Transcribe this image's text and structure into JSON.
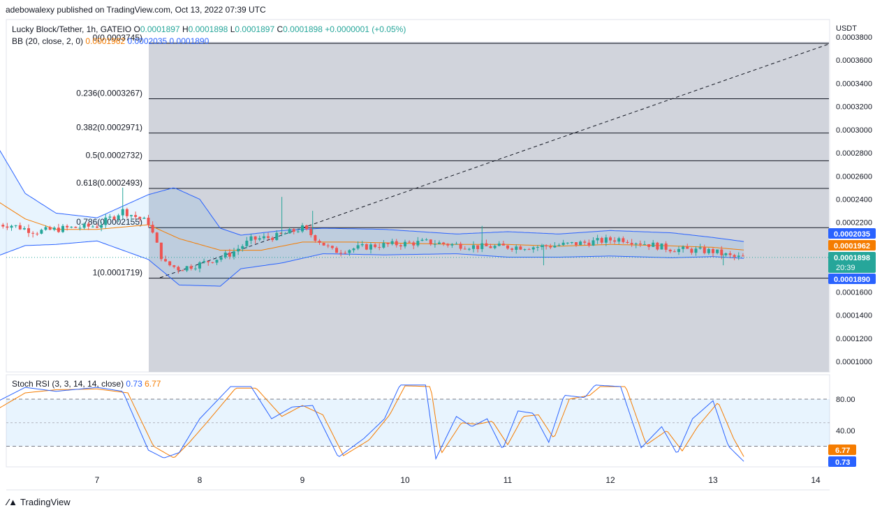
{
  "header": {
    "published_by": "adebowalexy published on TradingView.com, Oct 13, 2022 07:39 UTC"
  },
  "legend": {
    "symbol": "Lucky Block/Tether, 1h, GATEIO",
    "o_label": "O",
    "o": "0.0001897",
    "h_label": "H",
    "h": "0.0001898",
    "l_label": "L",
    "l": "0.0001897",
    "c_label": "C",
    "c": "0.0001898",
    "change": "+0.0000001 (+0.05%)",
    "bb_label": "BB (20, close, 2, 0)",
    "bb_basis": "0.0001962",
    "bb_upper": "0.0002035",
    "bb_lower": "0.0001890"
  },
  "price_axis": {
    "currency": "USDT",
    "ticks": [
      "0.0003800",
      "0.0003600",
      "0.0003400",
      "0.0003200",
      "0.0003000",
      "0.0002800",
      "0.0002600",
      "0.0002400",
      "0.0002200",
      "0.0001600",
      "0.0001400",
      "0.0001200",
      "0.0001000"
    ],
    "badges": [
      {
        "value": "0.0002035",
        "color": "#2962ff"
      },
      {
        "value": "0.0001962",
        "color": "#f57c00"
      },
      {
        "value": "0.0001898",
        "color": "#26a69a",
        "sub": "20:39"
      },
      {
        "value": "0.0001890",
        "color": "#2962ff"
      }
    ]
  },
  "time_axis": {
    "ticks": [
      "7",
      "8",
      "9",
      "10",
      "11",
      "12",
      "13",
      "14"
    ]
  },
  "fib_levels": [
    {
      "label": "0(0.0003745)",
      "price": 0.0003745
    },
    {
      "label": "0.236(0.0003267)",
      "price": 0.0003267
    },
    {
      "label": "0.382(0.0002971)",
      "price": 0.0002971
    },
    {
      "label": "0.5(0.0002732)",
      "price": 0.0002732
    },
    {
      "label": "0.618(0.0002493)",
      "price": 0.0002493
    },
    {
      "label": "0.786(0.0002155)",
      "price": 0.0002155
    },
    {
      "label": "1(0.0001719)",
      "price": 0.0001719
    }
  ],
  "stoch_rsi": {
    "label": "Stoch RSI (3, 3, 14, 14, close)",
    "k_value": "0.73",
    "d_value": "6.77",
    "axis_ticks": [
      "80.00",
      "40.00"
    ],
    "k_color": "#2962ff",
    "d_color": "#f57c00"
  },
  "colors": {
    "up": "#26a69a",
    "down": "#ef5350",
    "bb_band": "#2962ff",
    "bb_basis": "#f57c00",
    "fib_zone": "#d1d4dc"
  },
  "brand": "TradingView",
  "chart_data": {
    "type": "candlestick",
    "title": "Lucky Block/Tether, 1h, GATEIO",
    "ylabel": "USDT",
    "x_ticks": [
      "7",
      "8",
      "9",
      "10",
      "11",
      "12",
      "13",
      "14"
    ],
    "ylim": [
      9e-05,
      0.000385
    ],
    "close_anchors": [
      {
        "x": 6.15,
        "close": 0.000218
      },
      {
        "x": 6.4,
        "close": 0.000212
      },
      {
        "x": 6.7,
        "close": 0.000215
      },
      {
        "x": 7.0,
        "close": 0.000217
      },
      {
        "x": 7.25,
        "close": 0.00023
      },
      {
        "x": 7.5,
        "close": 0.00022
      },
      {
        "x": 7.65,
        "close": 0.000185
      },
      {
        "x": 7.8,
        "close": 0.00018
      },
      {
        "x": 8.0,
        "close": 0.000184
      },
      {
        "x": 8.3,
        "close": 0.000193
      },
      {
        "x": 8.5,
        "close": 0.000205
      },
      {
        "x": 8.75,
        "close": 0.000208
      },
      {
        "x": 9.0,
        "close": 0.000215
      },
      {
        "x": 9.3,
        "close": 0.000195
      },
      {
        "x": 9.7,
        "close": 0.0002
      },
      {
        "x": 10.2,
        "close": 0.000203
      },
      {
        "x": 10.7,
        "close": 0.000199
      },
      {
        "x": 11.3,
        "close": 0.000199
      },
      {
        "x": 11.7,
        "close": 0.000202
      },
      {
        "x": 12.1,
        "close": 0.000206
      },
      {
        "x": 12.6,
        "close": 0.000197
      },
      {
        "x": 13.0,
        "close": 0.000195
      },
      {
        "x": 13.2,
        "close": 0.0001898
      }
    ],
    "bb_upper_anchors": [
      {
        "x": 6.0,
        "v": 0.00029
      },
      {
        "x": 6.3,
        "v": 0.000245
      },
      {
        "x": 6.6,
        "v": 0.000228
      },
      {
        "x": 7.0,
        "v": 0.000224
      },
      {
        "x": 7.5,
        "v": 0.000244
      },
      {
        "x": 7.75,
        "v": 0.00025
      },
      {
        "x": 8.0,
        "v": 0.00024
      },
      {
        "x": 8.2,
        "v": 0.000215
      },
      {
        "x": 8.4,
        "v": 0.000209
      },
      {
        "x": 8.8,
        "v": 0.000213
      },
      {
        "x": 9.2,
        "v": 0.000215
      },
      {
        "x": 9.8,
        "v": 0.000214
      },
      {
        "x": 10.5,
        "v": 0.00021
      },
      {
        "x": 11.0,
        "v": 0.000212
      },
      {
        "x": 11.5,
        "v": 0.00021
      },
      {
        "x": 12.0,
        "v": 0.000213
      },
      {
        "x": 12.6,
        "v": 0.000211
      },
      {
        "x": 13.0,
        "v": 0.000207
      },
      {
        "x": 13.3,
        "v": 0.0002035
      }
    ],
    "bb_basis_anchors": [
      {
        "x": 6.0,
        "v": 0.00024
      },
      {
        "x": 6.3,
        "v": 0.000223
      },
      {
        "x": 6.6,
        "v": 0.000214
      },
      {
        "x": 7.0,
        "v": 0.000214
      },
      {
        "x": 7.5,
        "v": 0.000218
      },
      {
        "x": 7.8,
        "v": 0.000206
      },
      {
        "x": 8.2,
        "v": 0.000196
      },
      {
        "x": 8.6,
        "v": 0.000196
      },
      {
        "x": 9.0,
        "v": 0.000203
      },
      {
        "x": 9.5,
        "v": 0.000203
      },
      {
        "x": 10.0,
        "v": 0.000202
      },
      {
        "x": 10.5,
        "v": 0.000201
      },
      {
        "x": 11.0,
        "v": 0.000201
      },
      {
        "x": 11.5,
        "v": 0.0001995
      },
      {
        "x": 12.0,
        "v": 0.000201
      },
      {
        "x": 12.5,
        "v": 0.0002
      },
      {
        "x": 13.0,
        "v": 0.0001985
      },
      {
        "x": 13.3,
        "v": 0.0001962
      }
    ],
    "bb_lower_anchors": [
      {
        "x": 6.0,
        "v": 0.00019
      },
      {
        "x": 6.3,
        "v": 0.0002
      },
      {
        "x": 6.6,
        "v": 0.000201
      },
      {
        "x": 7.0,
        "v": 0.000204
      },
      {
        "x": 7.5,
        "v": 0.000188
      },
      {
        "x": 7.8,
        "v": 0.000166
      },
      {
        "x": 8.2,
        "v": 0.000165
      },
      {
        "x": 8.4,
        "v": 0.00018
      },
      {
        "x": 8.8,
        "v": 0.000185
      },
      {
        "x": 9.2,
        "v": 0.000193
      },
      {
        "x": 9.8,
        "v": 0.000192
      },
      {
        "x": 10.5,
        "v": 0.000193
      },
      {
        "x": 11.0,
        "v": 0.00019
      },
      {
        "x": 11.5,
        "v": 0.00019
      },
      {
        "x": 12.0,
        "v": 0.000191
      },
      {
        "x": 12.6,
        "v": 0.0001895
      },
      {
        "x": 13.0,
        "v": 0.0001905
      },
      {
        "x": 13.3,
        "v": 0.000189
      }
    ],
    "stoch_k_anchors": [
      {
        "x": 6.0,
        "v": 75
      },
      {
        "x": 6.3,
        "v": 95
      },
      {
        "x": 6.6,
        "v": 90
      },
      {
        "x": 7.0,
        "v": 95
      },
      {
        "x": 7.25,
        "v": 90
      },
      {
        "x": 7.5,
        "v": 15
      },
      {
        "x": 7.65,
        "v": 5
      },
      {
        "x": 7.8,
        "v": 12
      },
      {
        "x": 8.0,
        "v": 55
      },
      {
        "x": 8.3,
        "v": 96
      },
      {
        "x": 8.5,
        "v": 96
      },
      {
        "x": 8.7,
        "v": 55
      },
      {
        "x": 8.9,
        "v": 70
      },
      {
        "x": 9.1,
        "v": 72
      },
      {
        "x": 9.35,
        "v": 6
      },
      {
        "x": 9.6,
        "v": 30
      },
      {
        "x": 9.8,
        "v": 55
      },
      {
        "x": 9.95,
        "v": 98
      },
      {
        "x": 10.2,
        "v": 98
      },
      {
        "x": 10.3,
        "v": 4
      },
      {
        "x": 10.5,
        "v": 58
      },
      {
        "x": 10.65,
        "v": 45
      },
      {
        "x": 10.8,
        "v": 55
      },
      {
        "x": 10.95,
        "v": 16
      },
      {
        "x": 11.1,
        "v": 65
      },
      {
        "x": 11.25,
        "v": 62
      },
      {
        "x": 11.4,
        "v": 25
      },
      {
        "x": 11.55,
        "v": 85
      },
      {
        "x": 11.75,
        "v": 82
      },
      {
        "x": 11.85,
        "v": 98
      },
      {
        "x": 12.1,
        "v": 96
      },
      {
        "x": 12.3,
        "v": 18
      },
      {
        "x": 12.5,
        "v": 45
      },
      {
        "x": 12.65,
        "v": 10
      },
      {
        "x": 12.8,
        "v": 55
      },
      {
        "x": 13.0,
        "v": 78
      },
      {
        "x": 13.15,
        "v": 20
      },
      {
        "x": 13.3,
        "v": 0.73
      }
    ],
    "stoch_d_anchors": [
      {
        "x": 6.0,
        "v": 65
      },
      {
        "x": 6.3,
        "v": 88
      },
      {
        "x": 6.6,
        "v": 92
      },
      {
        "x": 7.0,
        "v": 93
      },
      {
        "x": 7.3,
        "v": 88
      },
      {
        "x": 7.55,
        "v": 20
      },
      {
        "x": 7.75,
        "v": 5
      },
      {
        "x": 7.9,
        "v": 25
      },
      {
        "x": 8.1,
        "v": 55
      },
      {
        "x": 8.35,
        "v": 94
      },
      {
        "x": 8.55,
        "v": 94
      },
      {
        "x": 8.8,
        "v": 58
      },
      {
        "x": 9.0,
        "v": 72
      },
      {
        "x": 9.2,
        "v": 60
      },
      {
        "x": 9.4,
        "v": 8
      },
      {
        "x": 9.65,
        "v": 28
      },
      {
        "x": 9.85,
        "v": 60
      },
      {
        "x": 10.0,
        "v": 97
      },
      {
        "x": 10.25,
        "v": 96
      },
      {
        "x": 10.35,
        "v": 10
      },
      {
        "x": 10.55,
        "v": 50
      },
      {
        "x": 10.7,
        "v": 48
      },
      {
        "x": 10.85,
        "v": 52
      },
      {
        "x": 11.0,
        "v": 22
      },
      {
        "x": 11.15,
        "v": 58
      },
      {
        "x": 11.3,
        "v": 60
      },
      {
        "x": 11.45,
        "v": 30
      },
      {
        "x": 11.6,
        "v": 80
      },
      {
        "x": 11.8,
        "v": 85
      },
      {
        "x": 11.9,
        "v": 96
      },
      {
        "x": 12.15,
        "v": 96
      },
      {
        "x": 12.35,
        "v": 22
      },
      {
        "x": 12.55,
        "v": 40
      },
      {
        "x": 12.7,
        "v": 14
      },
      {
        "x": 12.85,
        "v": 45
      },
      {
        "x": 13.05,
        "v": 76
      },
      {
        "x": 13.2,
        "v": 30
      },
      {
        "x": 13.3,
        "v": 6.77
      }
    ]
  }
}
